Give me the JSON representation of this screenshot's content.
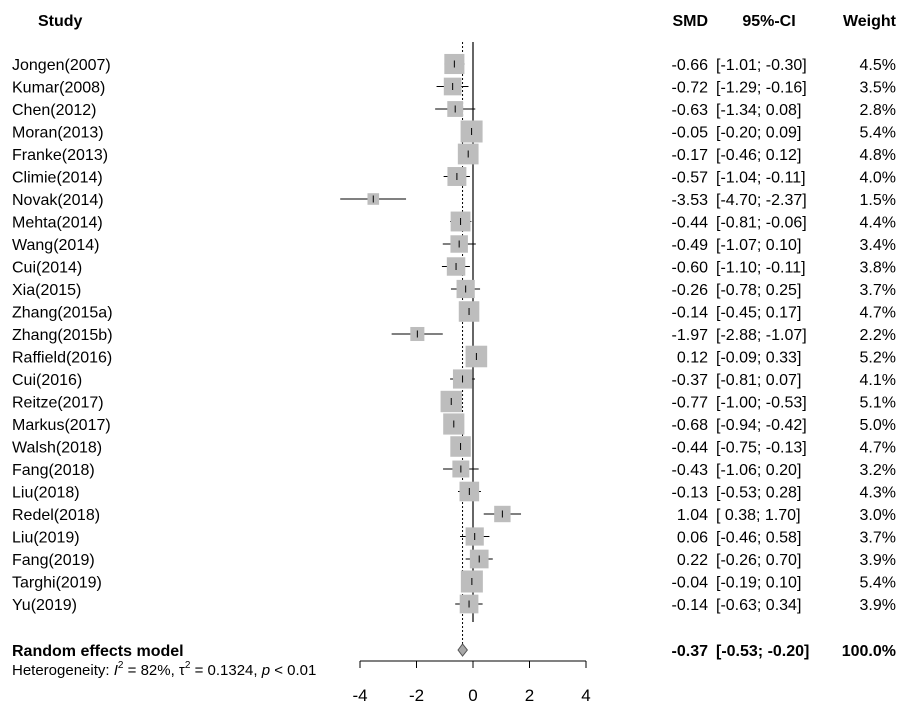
{
  "chart_data": {
    "type": "forest",
    "headers": {
      "study": "Study",
      "smd": "SMD",
      "ci": "95%-CI",
      "weight": "Weight"
    },
    "studies": [
      {
        "name": "Jongen(2007)",
        "smd": -0.66,
        "lower": -1.01,
        "upper": -0.3,
        "weight": 4.5,
        "smd_text": "-0.66",
        "ci_text": "[-1.01; -0.30]",
        "weight_text": "4.5%"
      },
      {
        "name": "Kumar(2008)",
        "smd": -0.72,
        "lower": -1.29,
        "upper": -0.16,
        "weight": 3.5,
        "smd_text": "-0.72",
        "ci_text": "[-1.29; -0.16]",
        "weight_text": "3.5%"
      },
      {
        "name": "Chen(2012)",
        "smd": -0.63,
        "lower": -1.34,
        "upper": 0.08,
        "weight": 2.8,
        "smd_text": "-0.63",
        "ci_text": "[-1.34;  0.08]",
        "weight_text": "2.8%"
      },
      {
        "name": "Moran(2013)",
        "smd": -0.05,
        "lower": -0.2,
        "upper": 0.09,
        "weight": 5.4,
        "smd_text": "-0.05",
        "ci_text": "[-0.20;  0.09]",
        "weight_text": "5.4%"
      },
      {
        "name": "Franke(2013)",
        "smd": -0.17,
        "lower": -0.46,
        "upper": 0.12,
        "weight": 4.8,
        "smd_text": "-0.17",
        "ci_text": "[-0.46;  0.12]",
        "weight_text": "4.8%"
      },
      {
        "name": "Climie(2014)",
        "smd": -0.57,
        "lower": -1.04,
        "upper": -0.11,
        "weight": 4.0,
        "smd_text": "-0.57",
        "ci_text": "[-1.04; -0.11]",
        "weight_text": "4.0%"
      },
      {
        "name": "Novak(2014)",
        "smd": -3.53,
        "lower": -4.7,
        "upper": -2.37,
        "weight": 1.5,
        "smd_text": "-3.53",
        "ci_text": "[-4.70; -2.37]",
        "weight_text": "1.5%"
      },
      {
        "name": "Mehta(2014)",
        "smd": -0.44,
        "lower": -0.81,
        "upper": -0.06,
        "weight": 4.4,
        "smd_text": "-0.44",
        "ci_text": "[-0.81; -0.06]",
        "weight_text": "4.4%"
      },
      {
        "name": "Wang(2014)",
        "smd": -0.49,
        "lower": -1.07,
        "upper": 0.1,
        "weight": 3.4,
        "smd_text": "-0.49",
        "ci_text": "[-1.07;  0.10]",
        "weight_text": "3.4%"
      },
      {
        "name": "Cui(2014)",
        "smd": -0.6,
        "lower": -1.1,
        "upper": -0.11,
        "weight": 3.8,
        "smd_text": "-0.60",
        "ci_text": "[-1.10; -0.11]",
        "weight_text": "3.8%"
      },
      {
        "name": "Xia(2015)",
        "smd": -0.26,
        "lower": -0.78,
        "upper": 0.25,
        "weight": 3.7,
        "smd_text": "-0.26",
        "ci_text": "[-0.78;  0.25]",
        "weight_text": "3.7%"
      },
      {
        "name": "Zhang(2015a)",
        "smd": -0.14,
        "lower": -0.45,
        "upper": 0.17,
        "weight": 4.7,
        "smd_text": "-0.14",
        "ci_text": "[-0.45;  0.17]",
        "weight_text": "4.7%"
      },
      {
        "name": "Zhang(2015b)",
        "smd": -1.97,
        "lower": -2.88,
        "upper": -1.07,
        "weight": 2.2,
        "smd_text": "-1.97",
        "ci_text": "[-2.88; -1.07]",
        "weight_text": "2.2%"
      },
      {
        "name": "Raffield(2016)",
        "smd": 0.12,
        "lower": -0.09,
        "upper": 0.33,
        "weight": 5.2,
        "smd_text": "0.12",
        "ci_text": "[-0.09;  0.33]",
        "weight_text": "5.2%"
      },
      {
        "name": "Cui(2016)",
        "smd": -0.37,
        "lower": -0.81,
        "upper": 0.07,
        "weight": 4.1,
        "smd_text": "-0.37",
        "ci_text": "[-0.81;  0.07]",
        "weight_text": "4.1%"
      },
      {
        "name": "Reitze(2017)",
        "smd": -0.77,
        "lower": -1.0,
        "upper": -0.53,
        "weight": 5.1,
        "smd_text": "-0.77",
        "ci_text": "[-1.00; -0.53]",
        "weight_text": "5.1%"
      },
      {
        "name": "Markus(2017)",
        "smd": -0.68,
        "lower": -0.94,
        "upper": -0.42,
        "weight": 5.0,
        "smd_text": "-0.68",
        "ci_text": "[-0.94; -0.42]",
        "weight_text": "5.0%"
      },
      {
        "name": "Walsh(2018)",
        "smd": -0.44,
        "lower": -0.75,
        "upper": -0.13,
        "weight": 4.7,
        "smd_text": "-0.44",
        "ci_text": "[-0.75; -0.13]",
        "weight_text": "4.7%"
      },
      {
        "name": "Fang(2018)",
        "smd": -0.43,
        "lower": -1.06,
        "upper": 0.2,
        "weight": 3.2,
        "smd_text": "-0.43",
        "ci_text": "[-1.06;  0.20]",
        "weight_text": "3.2%"
      },
      {
        "name": "Liu(2018)",
        "smd": -0.13,
        "lower": -0.53,
        "upper": 0.28,
        "weight": 4.3,
        "smd_text": "-0.13",
        "ci_text": "[-0.53;  0.28]",
        "weight_text": "4.3%"
      },
      {
        "name": "Redel(2018)",
        "smd": 1.04,
        "lower": 0.38,
        "upper": 1.7,
        "weight": 3.0,
        "smd_text": "1.04",
        "ci_text": "[ 0.38;  1.70]",
        "weight_text": "3.0%"
      },
      {
        "name": "Liu(2019)",
        "smd": 0.06,
        "lower": -0.46,
        "upper": 0.58,
        "weight": 3.7,
        "smd_text": "0.06",
        "ci_text": "[-0.46;  0.58]",
        "weight_text": "3.7%"
      },
      {
        "name": "Fang(2019)",
        "smd": 0.22,
        "lower": -0.26,
        "upper": 0.7,
        "weight": 3.9,
        "smd_text": "0.22",
        "ci_text": "[-0.26;  0.70]",
        "weight_text": "3.9%"
      },
      {
        "name": "Targhi(2019)",
        "smd": -0.04,
        "lower": -0.19,
        "upper": 0.1,
        "weight": 5.4,
        "smd_text": "-0.04",
        "ci_text": "[-0.19;  0.10]",
        "weight_text": "5.4%"
      },
      {
        "name": "Yu(2019)",
        "smd": -0.14,
        "lower": -0.63,
        "upper": 0.34,
        "weight": 3.9,
        "smd_text": "-0.14",
        "ci_text": "[-0.63;  0.34]",
        "weight_text": "3.9%"
      }
    ],
    "pooled": {
      "label": "Random effects model",
      "smd": -0.37,
      "lower": -0.53,
      "upper": -0.2,
      "smd_text": "-0.37",
      "ci_text": "[-0.53; -0.20]",
      "weight_text": "100.0%"
    },
    "heterogeneity": {
      "prefix": "Heterogeneity: ",
      "i2_symbol": "I",
      "i2_sup": "2",
      "i2_value": " = 82%, ",
      "tau2_symbol": "τ",
      "tau2_sup": "2",
      "tau2_value": " = 0.1324, ",
      "p_symbol": "p",
      "p_value": " < 0.01"
    },
    "xlim": [
      -4,
      4
    ],
    "xticks": [
      -4,
      -2,
      0,
      2,
      4
    ],
    "xtick_labels": [
      "-4",
      "-2",
      "0",
      "2",
      "4"
    ],
    "null_line": 0,
    "colors": {
      "box": "#bdbdbd",
      "line": "#000000",
      "diamond": "#a8a8a8"
    }
  }
}
